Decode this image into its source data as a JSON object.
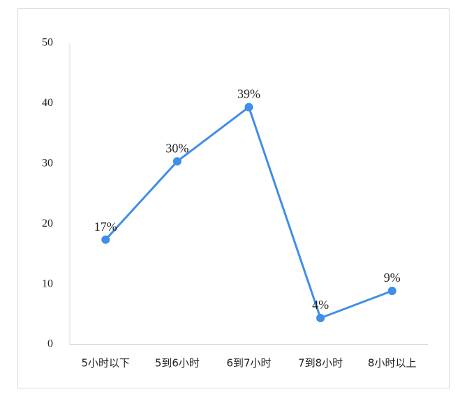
{
  "chart_data": {
    "type": "line",
    "categories": [
      "5小时以下",
      "5到6小时",
      "6到7小时",
      "7到8小时",
      "8小时以上"
    ],
    "values": [
      17.4,
      30.4,
      39.4,
      4.4,
      8.9
    ],
    "value_labels": [
      "17%",
      "30%",
      "39%",
      "4%",
      "9%"
    ],
    "color": "#3f8ee8",
    "ylim": [
      0,
      50
    ],
    "yticks": [
      0,
      10,
      20,
      30,
      40,
      50
    ],
    "grid": false
  }
}
